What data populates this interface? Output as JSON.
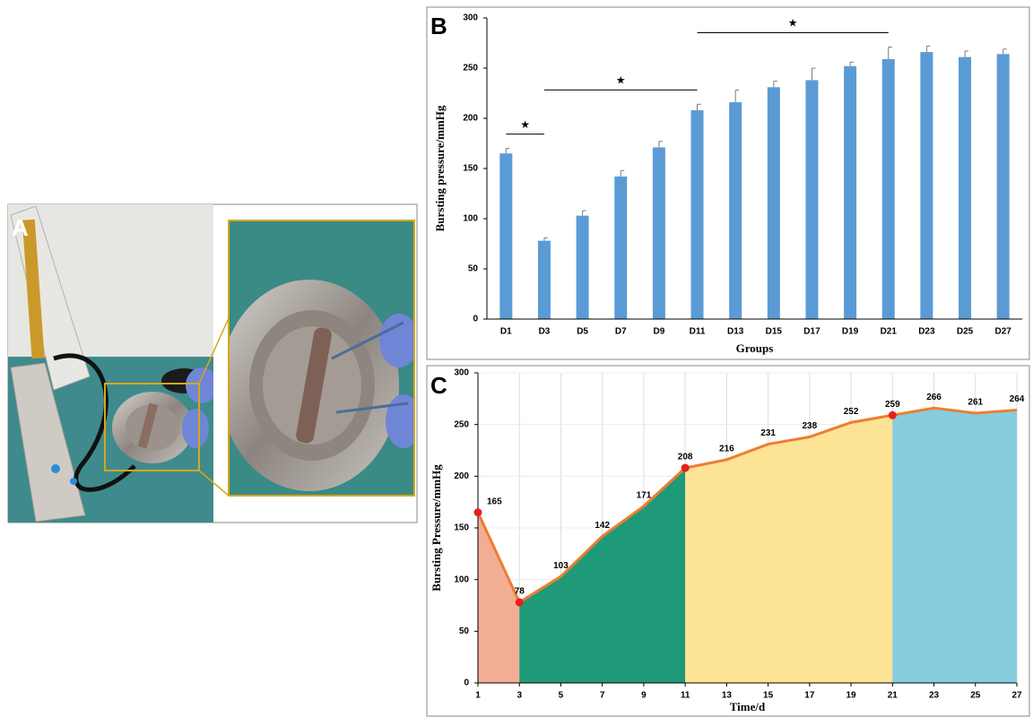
{
  "panel_labels": [
    "A",
    "B",
    "C"
  ],
  "chart_data": [
    {
      "type": "bar",
      "x_label": "Groups",
      "y_label": "Bursting pressure/mmHg",
      "categories": [
        "D1",
        "D3",
        "D5",
        "D7",
        "D9",
        "D11",
        "D13",
        "D15",
        "D17",
        "D19",
        "D21",
        "D23",
        "D25",
        "D27"
      ],
      "values": [
        165,
        78,
        103,
        142,
        171,
        208,
        216,
        231,
        238,
        252,
        259,
        266,
        261,
        264
      ],
      "errors": [
        5,
        3,
        5,
        6,
        6,
        6,
        12,
        6,
        12,
        4,
        12,
        6,
        6,
        5
      ],
      "color": "#5b9bd5",
      "ylim": [
        0,
        300
      ],
      "yticks": [
        0,
        50,
        100,
        150,
        200,
        250,
        300
      ],
      "annotations": [
        {
          "text": "★",
          "from": "D1",
          "to": "D3"
        },
        {
          "text": "★",
          "from": "D3",
          "to": "D11"
        },
        {
          "text": "★",
          "from": "D11",
          "to": "D21"
        }
      ]
    },
    {
      "type": "area",
      "x_label": "Time/d",
      "y_label": "Bursting Pressure/mmHg",
      "x": [
        1,
        3,
        5,
        7,
        9,
        11,
        13,
        15,
        17,
        19,
        21,
        23,
        25,
        27
      ],
      "values": [
        165,
        78,
        103,
        142,
        171,
        208,
        216,
        231,
        238,
        252,
        259,
        266,
        261,
        264
      ],
      "color": "#ed7d31",
      "xlim": [
        1,
        27
      ],
      "xticks": [
        1,
        3,
        5,
        7,
        9,
        11,
        13,
        15,
        17,
        19,
        21,
        23,
        25,
        27
      ],
      "ylim": [
        0,
        300
      ],
      "yticks": [
        0,
        50,
        100,
        150,
        200,
        250,
        300
      ],
      "grid": true,
      "regions": [
        {
          "from": 1,
          "to": 3,
          "color": "#f2ae95"
        },
        {
          "from": 3,
          "to": 11,
          "color": "#1f9a78"
        },
        {
          "from": 11,
          "to": 21,
          "color": "#fde395"
        },
        {
          "from": 21,
          "to": 27,
          "color": "#86cde0"
        }
      ],
      "highlight": {
        "x": [
          1,
          3,
          11,
          21
        ],
        "color": "#e8201c"
      }
    }
  ]
}
